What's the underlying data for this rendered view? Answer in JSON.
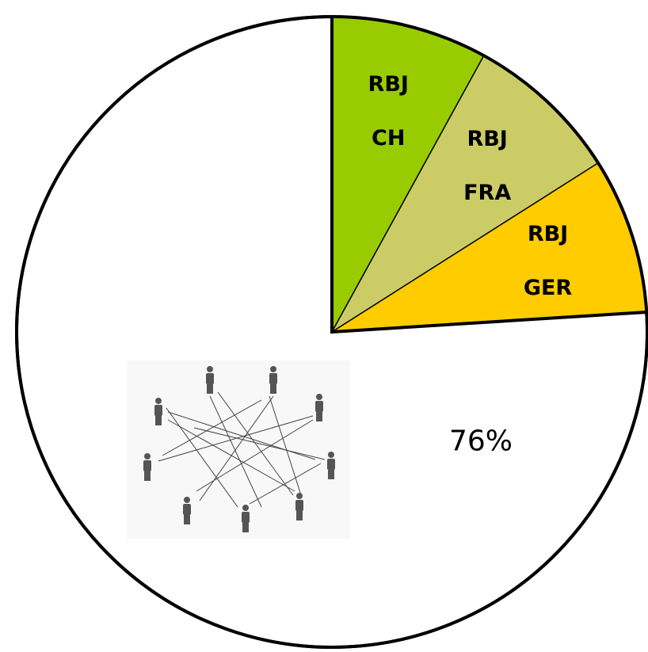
{
  "chart_data": {
    "type": "pie",
    "categories": [
      "RBJ CH",
      "RBJ FRA",
      "RBJ GER",
      null
    ],
    "values": [
      8,
      8,
      8,
      76
    ],
    "value_labels": [
      null,
      null,
      null,
      "76%"
    ],
    "colors": [
      "#99cc00",
      "#cccc66",
      "#ffcc00",
      "#ffffff"
    ]
  }
}
